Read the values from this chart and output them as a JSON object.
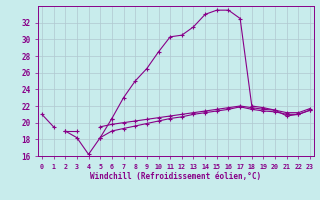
{
  "xlabel": "Windchill (Refroidissement éolien,°C)",
  "background_color": "#c8ecec",
  "grid_color": "#b0c8d0",
  "line_color": "#880088",
  "x_values": [
    0,
    1,
    2,
    3,
    4,
    5,
    6,
    7,
    8,
    9,
    10,
    11,
    12,
    13,
    14,
    15,
    16,
    17,
    18,
    19,
    20,
    21,
    22,
    23
  ],
  "line_main": [
    21.0,
    19.5,
    null,
    null,
    null,
    null,
    20.5,
    23.0,
    25.0,
    26.5,
    28.5,
    30.3,
    30.5,
    31.5,
    33.0,
    33.5,
    33.5,
    32.5,
    22.0,
    21.8,
    21.5,
    20.8,
    21.0,
    21.5
  ],
  "line_dip": [
    null,
    null,
    19.0,
    18.2,
    16.2,
    18.2,
    20.5,
    null,
    null,
    null,
    null,
    null,
    null,
    null,
    null,
    null,
    null,
    null,
    null,
    null,
    null,
    null,
    null,
    null
  ],
  "line_low1": [
    null,
    null,
    null,
    null,
    null,
    18.2,
    19.0,
    19.3,
    19.6,
    19.9,
    20.2,
    20.5,
    20.7,
    21.0,
    21.2,
    21.4,
    21.6,
    21.9,
    21.6,
    21.4,
    21.3,
    21.0,
    21.0,
    21.5
  ],
  "line_low2": [
    null,
    null,
    null,
    null,
    null,
    19.5,
    19.8,
    20.0,
    20.2,
    20.4,
    20.6,
    20.8,
    21.0,
    21.2,
    21.4,
    21.6,
    21.8,
    22.0,
    21.8,
    21.6,
    21.5,
    21.2,
    21.2,
    21.7
  ],
  "line_bot1": [
    null,
    null,
    19.0,
    19.0,
    null,
    null,
    null,
    null,
    null,
    null,
    null,
    null,
    null,
    null,
    null,
    null,
    null,
    null,
    null,
    null,
    null,
    null,
    null,
    null
  ],
  "xlim": [
    -0.3,
    23.3
  ],
  "ylim": [
    16,
    34
  ],
  "yticks": [
    16,
    18,
    20,
    22,
    24,
    26,
    28,
    30,
    32
  ],
  "xticks": [
    0,
    1,
    2,
    3,
    4,
    5,
    6,
    7,
    8,
    9,
    10,
    11,
    12,
    13,
    14,
    15,
    16,
    17,
    18,
    19,
    20,
    21,
    22,
    23
  ]
}
